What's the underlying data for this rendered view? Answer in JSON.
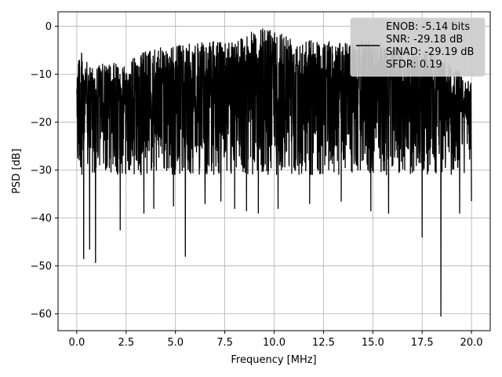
{
  "chart_data": {
    "type": "line",
    "xlabel": "Frequency [MHz]",
    "ylabel": "PSD [dB]",
    "xlim": [
      -0.95,
      20.95
    ],
    "ylim": [
      -63.5,
      3.0
    ],
    "x_ticks": [
      0.0,
      2.5,
      5.0,
      7.5,
      10.0,
      12.5,
      15.0,
      17.5,
      20.0
    ],
    "x_tick_labels": [
      "0.0",
      "2.5",
      "5.0",
      "7.5",
      "10.0",
      "12.5",
      "15.0",
      "17.5",
      "20.0"
    ],
    "y_ticks": [
      0,
      -10,
      -20,
      -30,
      -40,
      -50,
      -60
    ],
    "y_tick_labels": [
      "0",
      "−10",
      "−20",
      "−30",
      "−40",
      "−50",
      "−60"
    ],
    "grid": true,
    "legend_position": "top-right",
    "series": [
      {
        "name": "ENOB: -5.14 bits\nSNR: -29.18 dB\nSINAD: -29.19 dB\nSFDR: 0.19",
        "color": "#000000",
        "noise_floor_dB": -15,
        "upper_envelope": [
          [
            0.0,
            -3.5
          ],
          [
            0.5,
            -7.5
          ],
          [
            1.0,
            -8.0
          ],
          [
            2.5,
            -7.5
          ],
          [
            3.5,
            -5.0
          ],
          [
            5.0,
            -4.0
          ],
          [
            7.5,
            -3.0
          ],
          [
            9.8,
            0.0
          ],
          [
            11.0,
            -2.0
          ],
          [
            12.5,
            -3.0
          ],
          [
            14.0,
            -3.5
          ],
          [
            15.0,
            -2.5
          ],
          [
            16.5,
            -5.0
          ],
          [
            18.0,
            -5.5
          ],
          [
            19.0,
            -8.0
          ],
          [
            20.0,
            -12.0
          ]
        ],
        "deep_nulls": [
          [
            0.35,
            -48.5
          ],
          [
            0.65,
            -46.5
          ],
          [
            0.95,
            -49.3
          ],
          [
            2.2,
            -42.5
          ],
          [
            3.4,
            -39.0
          ],
          [
            3.9,
            -38.0
          ],
          [
            4.9,
            -37.5
          ],
          [
            5.5,
            -48.0
          ],
          [
            6.5,
            -37.0
          ],
          [
            7.3,
            -36.5
          ],
          [
            8.0,
            -38.0
          ],
          [
            8.6,
            -38.5
          ],
          [
            9.2,
            -39.0
          ],
          [
            10.2,
            -38.0
          ],
          [
            11.8,
            -37.0
          ],
          [
            13.4,
            -36.5
          ],
          [
            14.9,
            -38.5
          ],
          [
            15.8,
            -39.0
          ],
          [
            17.5,
            -44.0
          ],
          [
            18.45,
            -60.5
          ],
          [
            19.4,
            -39.0
          ],
          [
            20.0,
            -36.5
          ]
        ]
      }
    ]
  }
}
